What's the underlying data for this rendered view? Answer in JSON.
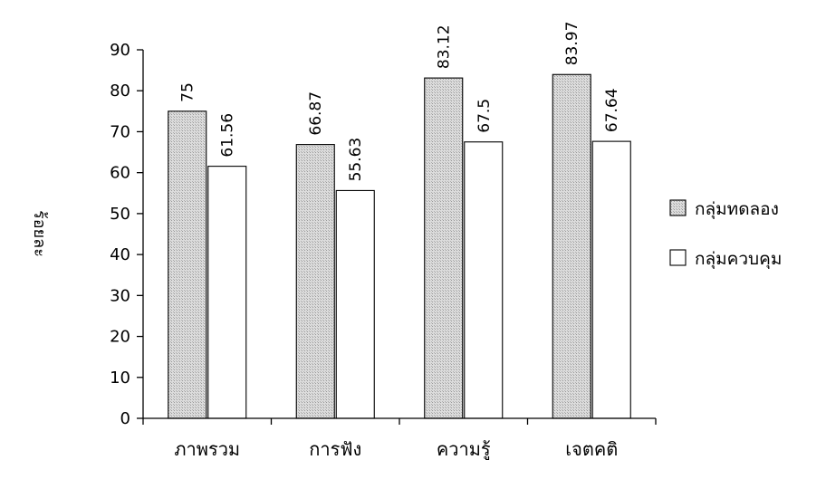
{
  "chart_data": {
    "type": "bar",
    "categories": [
      "ภาพรวม",
      "การฟัง",
      "ความรู้",
      "เจตคติ"
    ],
    "series": [
      {
        "name": "กลุ่มทดลอง",
        "values": [
          75,
          66.87,
          83.12,
          83.97
        ],
        "fill": "hatched-gray"
      },
      {
        "name": "กลุ่มควบคุม",
        "values": [
          61.56,
          55.63,
          67.5,
          67.64
        ],
        "fill": "white"
      }
    ],
    "data_labels": [
      [
        "75",
        "66.87",
        "83.12",
        "83.97"
      ],
      [
        "61.56",
        "55.63",
        "67.5",
        "67.64"
      ]
    ],
    "yticks": [
      "0",
      "10",
      "20",
      "30",
      "40",
      "50",
      "60",
      "70",
      "80",
      "90"
    ],
    "ylim": [
      0,
      90
    ],
    "ylabel": "ร้อยละ",
    "title": "",
    "xlabel": "",
    "legend_position": "right",
    "grid": false
  },
  "colors": {
    "bar_a_fill": "#d4d4d4",
    "bar_b_fill": "#ffffff",
    "stroke": "#000000"
  }
}
